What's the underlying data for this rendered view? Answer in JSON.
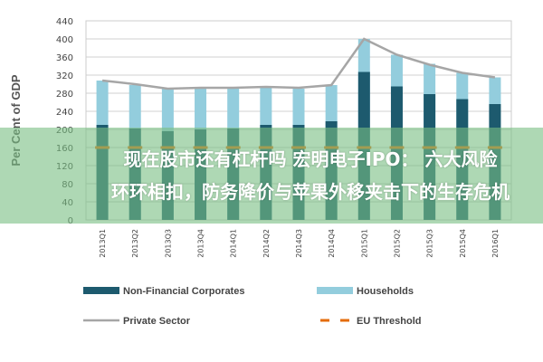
{
  "chart_data": {
    "type": "bar",
    "stacked_overlay": true,
    "ylabel": "Per Cent of GDP",
    "ylim": [
      0,
      440
    ],
    "yticks": [
      0,
      40,
      80,
      120,
      160,
      200,
      240,
      280,
      320,
      360,
      400,
      440
    ],
    "grid": true,
    "legend_position": "bottom",
    "categories": [
      "2013Q1",
      "2013Q2",
      "2013Q3",
      "2013Q4",
      "2014Q1",
      "2014Q2",
      "2014Q3",
      "2014Q4",
      "2015Q1",
      "2015Q2",
      "2015Q3",
      "2015Q4",
      "2016Q1"
    ],
    "series": [
      {
        "name": "Non-Financial Corporates",
        "kind": "bar",
        "color": "#1d5a6e",
        "values": [
          210,
          202,
          196,
          200,
          202,
          210,
          210,
          218,
          327,
          295,
          278,
          267,
          256
        ]
      },
      {
        "name": "Households",
        "kind": "bar-total",
        "color": "#93cddd",
        "values": [
          308,
          298,
          290,
          290,
          290,
          293,
          290,
          298,
          400,
          365,
          345,
          325,
          315
        ]
      },
      {
        "name": "Private Sector",
        "kind": "line",
        "color": "#a6a6a6",
        "values": [
          308,
          300,
          290,
          292,
          292,
          294,
          292,
          298,
          400,
          365,
          343,
          325,
          315
        ]
      },
      {
        "name": "EU Threshold",
        "kind": "dashed-line",
        "color": "#e46c0a",
        "values": [
          160,
          160,
          160,
          160,
          160,
          160,
          160,
          160,
          160,
          160,
          160,
          160,
          160
        ]
      }
    ]
  },
  "overlay": {
    "line1": "现在股市还有杠杆吗 宏明电子IPO： 六大风险",
    "line2": "环环相扣，防务降价与苹果外移夹击下的生存危机"
  }
}
